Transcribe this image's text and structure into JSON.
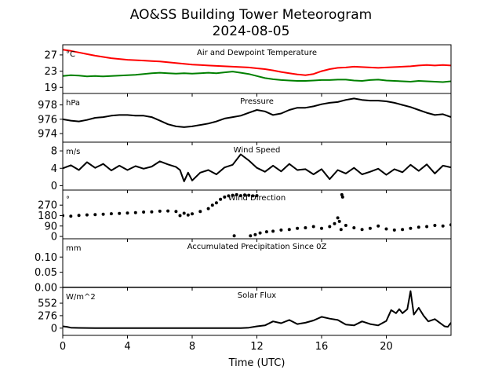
{
  "figure": {
    "title_line1": "AO&SS Building Tower Meteorogram",
    "title_line2": "2024-08-05",
    "xlabel": "Time (UTC)"
  },
  "chart_data": [
    {
      "type": "line",
      "title": "Air and Dewpoint Temperature",
      "unit": "°C",
      "xlim": [
        0,
        24
      ],
      "ylim": [
        17.5,
        29.5
      ],
      "yticks": [
        19,
        23,
        27
      ],
      "xticks": [
        0,
        4,
        8,
        12,
        16,
        20
      ],
      "series": [
        {
          "color": "#ff0000",
          "x": [
            0,
            0.5,
            1,
            1.5,
            2,
            2.5,
            3,
            3.5,
            4,
            4.5,
            5,
            5.5,
            6,
            6.5,
            7,
            7.5,
            8,
            8.5,
            9,
            9.5,
            10,
            10.5,
            11,
            11.5,
            12,
            12.5,
            13,
            13.5,
            14,
            14.5,
            15,
            15.5,
            16,
            16.5,
            17,
            17.5,
            18,
            18.5,
            19,
            19.5,
            20,
            20.5,
            21,
            21.5,
            22,
            22.5,
            23,
            23.5,
            24
          ],
          "y": [
            28.3,
            28.0,
            27.6,
            27.2,
            26.8,
            26.5,
            26.2,
            26.0,
            25.8,
            25.7,
            25.6,
            25.5,
            25.4,
            25.2,
            25.0,
            24.8,
            24.6,
            24.5,
            24.4,
            24.3,
            24.2,
            24.1,
            24.0,
            23.9,
            23.7,
            23.5,
            23.2,
            22.8,
            22.5,
            22.2,
            22.0,
            22.3,
            23.0,
            23.5,
            23.8,
            23.9,
            24.1,
            24.0,
            23.9,
            23.8,
            23.9,
            24.0,
            24.1,
            24.2,
            24.4,
            24.5,
            24.4,
            24.5,
            24.4
          ]
        },
        {
          "color": "#008000",
          "x": [
            0,
            0.5,
            1,
            1.5,
            2,
            2.5,
            3,
            3.5,
            4,
            4.5,
            5,
            5.5,
            6,
            6.5,
            7,
            7.5,
            8,
            8.5,
            9,
            9.5,
            10,
            10.5,
            11,
            11.5,
            12,
            12.5,
            13,
            13.5,
            14,
            14.5,
            15,
            15.5,
            16,
            16.5,
            17,
            17.5,
            18,
            18.5,
            19,
            19.5,
            20,
            20.5,
            21,
            21.5,
            22,
            22.5,
            23,
            23.5,
            24
          ],
          "y": [
            21.8,
            22.0,
            21.9,
            21.7,
            21.8,
            21.7,
            21.8,
            21.9,
            22.0,
            22.1,
            22.3,
            22.5,
            22.6,
            22.5,
            22.4,
            22.5,
            22.4,
            22.5,
            22.6,
            22.5,
            22.7,
            22.9,
            22.6,
            22.3,
            21.8,
            21.3,
            21.0,
            20.8,
            20.7,
            20.6,
            20.6,
            20.7,
            20.8,
            20.8,
            20.9,
            20.9,
            20.7,
            20.6,
            20.8,
            20.9,
            20.7,
            20.6,
            20.5,
            20.4,
            20.6,
            20.5,
            20.4,
            20.3,
            20.5
          ]
        }
      ]
    },
    {
      "type": "line",
      "title": "Pressure",
      "unit": "hPa",
      "xlim": [
        0,
        24
      ],
      "ylim": [
        972.8,
        979.6
      ],
      "yticks": [
        974,
        976,
        978
      ],
      "xticks": [
        0,
        4,
        8,
        12,
        16,
        20
      ],
      "series": [
        {
          "color": "#000000",
          "x": [
            0,
            0.5,
            1,
            1.5,
            2,
            2.5,
            3,
            3.5,
            4,
            4.5,
            5,
            5.5,
            6,
            6.5,
            7,
            7.5,
            8,
            8.5,
            9,
            9.5,
            10,
            10.5,
            11,
            11.5,
            12,
            12.5,
            13,
            13.5,
            14,
            14.5,
            15,
            15.5,
            16,
            16.5,
            17,
            17.5,
            18,
            18.5,
            19,
            19.5,
            20,
            20.5,
            21,
            21.5,
            22,
            22.5,
            23,
            23.5,
            24
          ],
          "y": [
            976.0,
            975.8,
            975.7,
            975.9,
            976.2,
            976.3,
            976.5,
            976.6,
            976.6,
            976.5,
            976.5,
            976.3,
            975.8,
            975.3,
            975.0,
            974.9,
            975.0,
            975.2,
            975.4,
            975.7,
            976.1,
            976.3,
            976.5,
            976.9,
            977.3,
            977.1,
            976.6,
            976.8,
            977.3,
            977.6,
            977.6,
            977.8,
            978.1,
            978.3,
            978.4,
            978.7,
            978.9,
            978.7,
            978.6,
            978.6,
            978.5,
            978.3,
            978.0,
            977.7,
            977.3,
            976.9,
            976.6,
            976.7,
            976.3
          ]
        }
      ]
    },
    {
      "type": "line",
      "title": "Wind Speed",
      "unit": "m/s",
      "xlim": [
        0,
        24
      ],
      "ylim": [
        -1.0,
        10.0
      ],
      "yticks": [
        0,
        4,
        8
      ],
      "xticks": [
        0,
        4,
        8,
        12,
        16,
        20
      ],
      "series": [
        {
          "color": "#000000",
          "x": [
            0,
            0.5,
            1,
            1.5,
            2,
            2.5,
            3,
            3.5,
            4,
            4.5,
            5,
            5.5,
            6,
            6.5,
            7,
            7.25,
            7.5,
            7.75,
            8,
            8.5,
            9,
            9.5,
            10,
            10.5,
            11,
            11.5,
            12,
            12.5,
            13,
            13.5,
            14,
            14.5,
            15,
            15.5,
            16,
            16.5,
            17,
            17.5,
            18,
            18.5,
            19,
            19.5,
            20,
            20.5,
            21,
            21.5,
            22,
            22.5,
            23,
            23.5,
            24
          ],
          "y": [
            4.0,
            4.7,
            3.6,
            5.4,
            4.1,
            5.0,
            3.5,
            4.6,
            3.6,
            4.5,
            3.9,
            4.4,
            5.6,
            4.9,
            4.3,
            3.6,
            1.0,
            3.0,
            1.2,
            3.0,
            3.6,
            2.6,
            4.2,
            4.8,
            7.2,
            5.8,
            4.1,
            3.2,
            4.6,
            3.3,
            5.0,
            3.6,
            3.8,
            2.6,
            3.8,
            1.5,
            3.6,
            2.8,
            4.1,
            2.6,
            3.2,
            3.9,
            2.5,
            3.8,
            3.1,
            4.8,
            3.4,
            4.9,
            2.8,
            4.6,
            4.2
          ]
        }
      ]
    },
    {
      "type": "scatter",
      "title": "Wind Direction",
      "unit": "°",
      "xlim": [
        0,
        24
      ],
      "ylim": [
        -20,
        400
      ],
      "yticks": [
        0,
        90,
        180,
        270
      ],
      "xticks": [
        0,
        4,
        8,
        12,
        16,
        20
      ],
      "series": [
        {
          "color": "#000000",
          "x": [
            0,
            0.5,
            1,
            1.5,
            2,
            2.5,
            3,
            3.5,
            4,
            4.5,
            5,
            5.5,
            6,
            6.5,
            7,
            7.25,
            7.5,
            7.75,
            8,
            8.5,
            9,
            9.25,
            9.5,
            9.75,
            10,
            10.25,
            10.5,
            10.75,
            11,
            11.25,
            11.5,
            11.75,
            12,
            10.6,
            11.6,
            11.9,
            12.2,
            12.6,
            13,
            13.5,
            14,
            14.5,
            15,
            15.5,
            16,
            16.5,
            16.8,
            17.0,
            17.1,
            17.2,
            17.25,
            17.3,
            17.5,
            18,
            18.5,
            19,
            19.5,
            20,
            20.5,
            21,
            21.5,
            22,
            22.5,
            23,
            23.5,
            24
          ],
          "y": [
            180,
            175,
            182,
            186,
            188,
            192,
            196,
            198,
            202,
            205,
            210,
            212,
            218,
            220,
            215,
            180,
            200,
            185,
            195,
            215,
            240,
            270,
            290,
            320,
            340,
            350,
            355,
            360,
            352,
            358,
            355,
            350,
            352,
            5,
            5,
            15,
            30,
            40,
            45,
            55,
            60,
            70,
            75,
            85,
            70,
            85,
            110,
            160,
            130,
            60,
            360,
            340,
            95,
            75,
            60,
            70,
            90,
            65,
            55,
            60,
            70,
            80,
            85,
            95,
            90,
            100
          ]
        }
      ]
    },
    {
      "type": "line",
      "title": "Accumulated Precipitation Since 0Z",
      "unit": "mm",
      "xlim": [
        0,
        24
      ],
      "ylim": [
        0.0,
        0.16
      ],
      "yticks": [
        0.0,
        0.05,
        0.1
      ],
      "ytick_labels": [
        "0.00",
        "0.05",
        "0.10"
      ],
      "xticks": [
        0,
        4,
        8,
        12,
        16,
        20
      ],
      "series": [
        {
          "color": "#000000",
          "x": [
            0,
            24
          ],
          "y": [
            0.0,
            0.0
          ]
        }
      ]
    },
    {
      "type": "line",
      "title": "Solar Flux",
      "unit": "W/m^2",
      "xlim": [
        0,
        24
      ],
      "ylim": [
        -160,
        900
      ],
      "yticks": [
        0,
        276,
        552
      ],
      "xticks": [
        0,
        4,
        8,
        12,
        16,
        20
      ],
      "xtick_labels": [
        "0",
        "4",
        "8",
        "12",
        "16",
        "20"
      ],
      "series": [
        {
          "color": "#000000",
          "x": [
            0,
            0.25,
            0.5,
            1,
            2,
            3,
            4,
            5,
            6,
            7,
            8,
            9,
            10,
            11,
            11.5,
            12,
            12.5,
            13,
            13.5,
            14,
            14.5,
            15,
            15.5,
            16,
            16.5,
            17,
            17.5,
            18,
            18.5,
            19,
            19.5,
            20,
            20.3,
            20.6,
            20.8,
            21.0,
            21.3,
            21.5,
            21.7,
            22.0,
            22.3,
            22.6,
            23.0,
            23.3,
            23.6,
            23.8,
            24
          ],
          "y": [
            40,
            30,
            10,
            5,
            0,
            0,
            0,
            0,
            0,
            0,
            0,
            0,
            0,
            0,
            10,
            40,
            60,
            150,
            110,
            180,
            90,
            120,
            170,
            250,
            210,
            180,
            80,
            60,
            150,
            90,
            60,
            160,
            400,
            330,
            420,
            330,
            420,
            820,
            300,
            450,
            280,
            150,
            200,
            120,
            40,
            30,
            120
          ]
        }
      ]
    }
  ]
}
